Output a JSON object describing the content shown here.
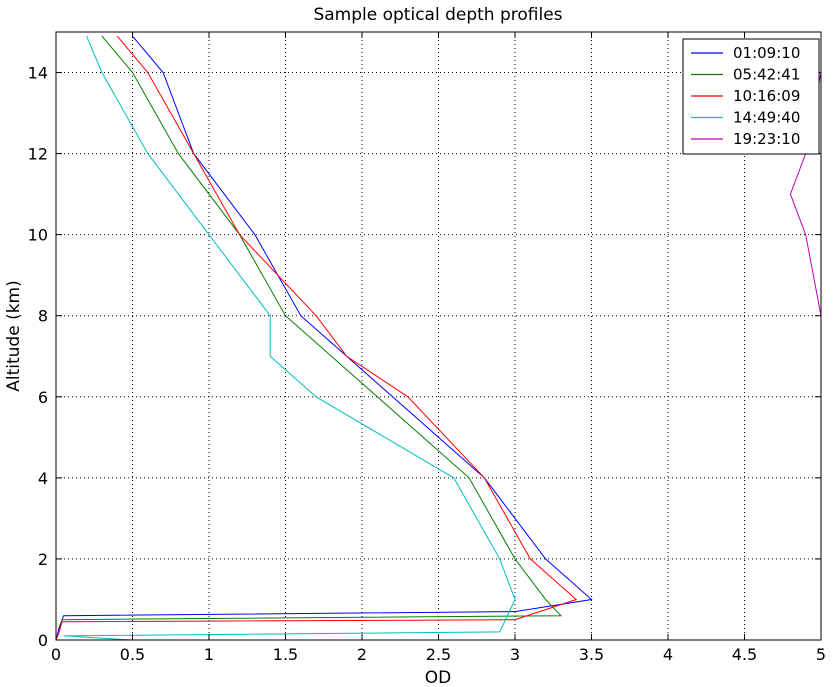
{
  "chart_data": {
    "type": "line",
    "title": "Sample optical depth profiles",
    "xlabel": "OD",
    "ylabel": "Altitude (km)",
    "xlim": [
      0,
      5
    ],
    "ylim": [
      0,
      15
    ],
    "x_ticks": [
      "0",
      "0.5",
      "1",
      "1.5",
      "2",
      "2.5",
      "3",
      "3.5",
      "4",
      "4.5",
      "5"
    ],
    "y_ticks": [
      "0",
      "2",
      "4",
      "6",
      "8",
      "10",
      "12",
      "14"
    ],
    "grid": true,
    "legend_position": "top-right",
    "series": [
      {
        "name": "01:09:10",
        "color": "#0000ff",
        "x": [
          0.0,
          0.02,
          0.05,
          3.0,
          3.5,
          3.2,
          2.8,
          2.2,
          1.9,
          1.6,
          1.3,
          0.9,
          0.7,
          0.5
        ],
        "y": [
          0.0,
          0.3,
          0.6,
          0.7,
          1.0,
          2.0,
          4.0,
          6.0,
          7.0,
          8.0,
          10.0,
          12.0,
          14.0,
          14.9
        ]
      },
      {
        "name": "05:42:41",
        "color": "#007f00",
        "x": [
          0.0,
          0.02,
          0.04,
          3.3,
          3.2,
          3.0,
          2.7,
          2.1,
          1.8,
          1.5,
          1.2,
          0.8,
          0.5,
          0.3
        ],
        "y": [
          0.0,
          0.2,
          0.5,
          0.6,
          1.0,
          2.0,
          4.0,
          6.0,
          7.0,
          8.0,
          10.0,
          12.0,
          14.0,
          14.9
        ]
      },
      {
        "name": "10:16:09",
        "color": "#ff0000",
        "x": [
          0.0,
          0.02,
          0.04,
          3.0,
          3.4,
          3.1,
          2.8,
          2.3,
          1.9,
          1.7,
          1.2,
          0.9,
          0.6,
          0.4
        ],
        "y": [
          0.0,
          0.2,
          0.45,
          0.5,
          1.0,
          2.0,
          4.0,
          6.0,
          7.0,
          8.0,
          10.0,
          12.0,
          14.0,
          14.9
        ]
      },
      {
        "name": "14:49:40",
        "color": "#00bfbf",
        "x": [
          0.0,
          0.5,
          0.05,
          2.9,
          3.0,
          2.9,
          2.6,
          1.7,
          1.4,
          1.4,
          1.0,
          0.6,
          0.3,
          0.2
        ],
        "y": [
          0.0,
          0.0,
          0.1,
          0.2,
          1.0,
          2.0,
          4.0,
          6.0,
          7.0,
          8.0,
          10.0,
          12.0,
          14.0,
          14.9
        ]
      },
      {
        "name": "19:23:10",
        "color": "#bf00bf",
        "x": [
          5.0,
          5.0,
          4.9,
          4.8,
          4.9,
          5.0
        ],
        "y": [
          7.0,
          8.0,
          10.0,
          11.0,
          12.0,
          14.0
        ]
      }
    ]
  }
}
